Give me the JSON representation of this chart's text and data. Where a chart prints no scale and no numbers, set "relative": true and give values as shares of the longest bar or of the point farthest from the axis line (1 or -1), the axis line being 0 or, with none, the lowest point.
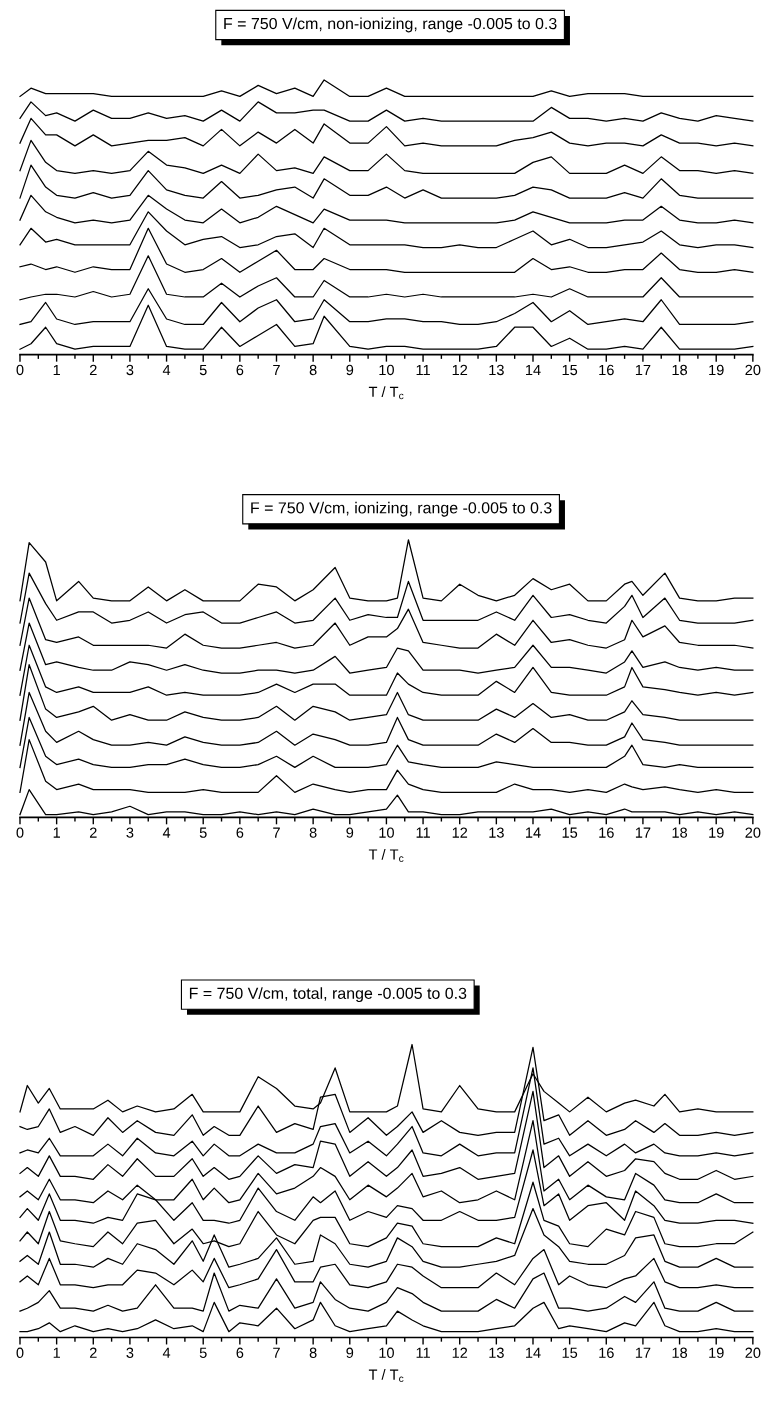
{
  "chart_data": [
    {
      "type": "line",
      "title": "F = 750 V/cm, non-ionizing, range -0.005 to 0.3",
      "xlabel": "T / T$_{c}$",
      "relative": true,
      "tick_labels": "x",
      "xlim": [
        0,
        20
      ],
      "xticks": [
        0,
        1,
        2,
        3,
        4,
        5,
        6,
        7,
        8,
        9,
        10,
        11,
        12,
        13,
        14,
        15,
        16,
        17,
        18,
        19,
        20
      ],
      "marker": "none",
      "line_style": "solid",
      "x": [
        0,
        0.3,
        0.7,
        1,
        1.5,
        2,
        2.5,
        3,
        3.5,
        4,
        4.5,
        5,
        5.5,
        6,
        6.5,
        7,
        7.5,
        8,
        8.3,
        9,
        9.5,
        10,
        10.5,
        11,
        11.5,
        12,
        12.5,
        13,
        13.5,
        14,
        14.5,
        15,
        15.5,
        16,
        16.5,
        17,
        17.5,
        18,
        18.5,
        19,
        19.5,
        20
      ],
      "series": [
        {
          "color": "#000000",
          "values": [
            0.02,
            0.04,
            0.1,
            0.04,
            0.02,
            0.03,
            0.03,
            0.03,
            0.18,
            0.03,
            0.02,
            0.02,
            0.1,
            0.03,
            0.07,
            0.11,
            0.03,
            0.04,
            0.14,
            0.03,
            0.02,
            0.03,
            0.03,
            0.02,
            0.02,
            0.02,
            0.02,
            0.03,
            0.1,
            0.1,
            0.03,
            0.06,
            0.02,
            0.02,
            0.03,
            0.02,
            0.1,
            0.02,
            0.02,
            0.02,
            0.02,
            0.03
          ]
        },
        {
          "color": "#000000",
          "values": [
            0.11,
            0.12,
            0.19,
            0.13,
            0.11,
            0.12,
            0.12,
            0.12,
            0.24,
            0.13,
            0.11,
            0.11,
            0.19,
            0.12,
            0.17,
            0.2,
            0.12,
            0.13,
            0.2,
            0.12,
            0.12,
            0.13,
            0.13,
            0.12,
            0.12,
            0.11,
            0.11,
            0.12,
            0.15,
            0.19,
            0.12,
            0.16,
            0.11,
            0.12,
            0.13,
            0.12,
            0.2,
            0.11,
            0.11,
            0.11,
            0.11,
            0.12
          ]
        },
        {
          "color": "#000000",
          "values": [
            0.2,
            0.21,
            0.22,
            0.22,
            0.21,
            0.23,
            0.21,
            0.22,
            0.36,
            0.22,
            0.21,
            0.21,
            0.26,
            0.21,
            0.25,
            0.28,
            0.21,
            0.21,
            0.27,
            0.21,
            0.21,
            0.22,
            0.21,
            0.22,
            0.21,
            0.21,
            0.21,
            0.21,
            0.21,
            0.22,
            0.21,
            0.24,
            0.21,
            0.21,
            0.21,
            0.21,
            0.28,
            0.21,
            0.21,
            0.21,
            0.21,
            0.21
          ]
        },
        {
          "color": "#000000",
          "values": [
            0.32,
            0.33,
            0.31,
            0.32,
            0.3,
            0.32,
            0.31,
            0.31,
            0.46,
            0.33,
            0.3,
            0.31,
            0.35,
            0.3,
            0.34,
            0.38,
            0.31,
            0.31,
            0.35,
            0.31,
            0.31,
            0.31,
            0.3,
            0.3,
            0.3,
            0.3,
            0.3,
            0.3,
            0.3,
            0.35,
            0.31,
            0.32,
            0.3,
            0.3,
            0.31,
            0.31,
            0.37,
            0.31,
            0.3,
            0.3,
            0.31,
            0.3
          ]
        },
        {
          "color": "#000000",
          "values": [
            0.4,
            0.46,
            0.41,
            0.42,
            0.4,
            0.4,
            0.4,
            0.4,
            0.52,
            0.45,
            0.4,
            0.42,
            0.43,
            0.39,
            0.4,
            0.43,
            0.44,
            0.39,
            0.46,
            0.4,
            0.4,
            0.4,
            0.4,
            0.39,
            0.39,
            0.4,
            0.39,
            0.39,
            0.42,
            0.45,
            0.4,
            0.42,
            0.39,
            0.39,
            0.4,
            0.41,
            0.45,
            0.4,
            0.39,
            0.4,
            0.4,
            0.39
          ]
        },
        {
          "color": "#000000",
          "values": [
            0.49,
            0.58,
            0.52,
            0.5,
            0.48,
            0.49,
            0.48,
            0.49,
            0.58,
            0.53,
            0.49,
            0.48,
            0.53,
            0.48,
            0.5,
            0.54,
            0.51,
            0.48,
            0.53,
            0.49,
            0.49,
            0.49,
            0.48,
            0.48,
            0.48,
            0.48,
            0.48,
            0.48,
            0.49,
            0.52,
            0.5,
            0.48,
            0.48,
            0.48,
            0.49,
            0.49,
            0.54,
            0.49,
            0.48,
            0.48,
            0.49,
            0.48
          ]
        },
        {
          "color": "#000000",
          "values": [
            0.57,
            0.69,
            0.61,
            0.58,
            0.57,
            0.59,
            0.57,
            0.58,
            0.67,
            0.6,
            0.58,
            0.57,
            0.63,
            0.57,
            0.58,
            0.6,
            0.61,
            0.57,
            0.64,
            0.58,
            0.58,
            0.61,
            0.57,
            0.6,
            0.57,
            0.57,
            0.57,
            0.57,
            0.58,
            0.61,
            0.6,
            0.57,
            0.57,
            0.57,
            0.59,
            0.57,
            0.64,
            0.58,
            0.57,
            0.57,
            0.57,
            0.57
          ]
        },
        {
          "color": "#000000",
          "values": [
            0.67,
            0.78,
            0.7,
            0.67,
            0.66,
            0.67,
            0.66,
            0.67,
            0.74,
            0.69,
            0.68,
            0.66,
            0.69,
            0.66,
            0.73,
            0.67,
            0.68,
            0.66,
            0.72,
            0.67,
            0.67,
            0.73,
            0.67,
            0.66,
            0.66,
            0.66,
            0.66,
            0.66,
            0.66,
            0.7,
            0.72,
            0.66,
            0.66,
            0.66,
            0.69,
            0.66,
            0.72,
            0.67,
            0.67,
            0.66,
            0.67,
            0.66
          ]
        },
        {
          "color": "#000000",
          "values": [
            0.77,
            0.86,
            0.8,
            0.8,
            0.76,
            0.8,
            0.76,
            0.77,
            0.78,
            0.78,
            0.79,
            0.76,
            0.82,
            0.76,
            0.81,
            0.77,
            0.82,
            0.77,
            0.84,
            0.77,
            0.77,
            0.83,
            0.76,
            0.77,
            0.76,
            0.76,
            0.76,
            0.76,
            0.78,
            0.79,
            0.81,
            0.77,
            0.76,
            0.77,
            0.77,
            0.76,
            0.8,
            0.77,
            0.77,
            0.76,
            0.77,
            0.76
          ]
        },
        {
          "color": "#000000",
          "values": [
            0.86,
            0.92,
            0.87,
            0.88,
            0.85,
            0.89,
            0.86,
            0.86,
            0.88,
            0.86,
            0.87,
            0.85,
            0.89,
            0.85,
            0.92,
            0.88,
            0.88,
            0.89,
            0.89,
            0.85,
            0.85,
            0.89,
            0.85,
            0.86,
            0.85,
            0.85,
            0.85,
            0.85,
            0.85,
            0.85,
            0.9,
            0.86,
            0.86,
            0.85,
            0.86,
            0.85,
            0.88,
            0.86,
            0.85,
            0.87,
            0.86,
            0.85
          ]
        },
        {
          "color": "#000000",
          "values": [
            0.94,
            0.97,
            0.95,
            0.95,
            0.95,
            0.95,
            0.94,
            0.94,
            0.94,
            0.94,
            0.94,
            0.94,
            0.96,
            0.94,
            0.98,
            0.95,
            0.97,
            0.94,
            1.0,
            0.94,
            0.94,
            0.97,
            0.94,
            0.94,
            0.94,
            0.94,
            0.94,
            0.94,
            0.94,
            0.94,
            0.96,
            0.94,
            0.95,
            0.95,
            0.95,
            0.94,
            0.94,
            0.94,
            0.94,
            0.94,
            0.94,
            0.94
          ]
        }
      ]
    },
    {
      "type": "line",
      "title": "F = 750 V/cm, ionizing, range -0.005 to 0.3",
      "xlabel": "T / T$_{c}$",
      "relative": true,
      "tick_labels": "x",
      "xlim": [
        0,
        20
      ],
      "xticks": [
        0,
        1,
        2,
        3,
        4,
        5,
        6,
        7,
        8,
        9,
        10,
        11,
        12,
        13,
        14,
        15,
        16,
        17,
        18,
        19,
        20
      ],
      "marker": "none",
      "line_style": "solid",
      "x": [
        0,
        0.25,
        0.7,
        1,
        1.6,
        2,
        2.5,
        3,
        3.5,
        4,
        4.5,
        5,
        5.5,
        6,
        6.5,
        7,
        7.5,
        8,
        8.6,
        9,
        9.5,
        10,
        10.3,
        10.6,
        11,
        11.5,
        12,
        12.5,
        13,
        13.5,
        14,
        14.5,
        15,
        15.5,
        16,
        16.5,
        16.7,
        17,
        17.6,
        18,
        18.5,
        19,
        19.5,
        20
      ],
      "series": [
        {
          "color": "#000000",
          "values": [
            0.01,
            0.1,
            0.01,
            0.01,
            0.02,
            0.01,
            0.02,
            0.04,
            0.01,
            0.02,
            0.02,
            0.01,
            0.01,
            0.02,
            0.01,
            0.02,
            0.01,
            0.03,
            0.01,
            0.01,
            0.02,
            0.03,
            0.08,
            0.02,
            0.02,
            0.01,
            0.01,
            0.02,
            0.02,
            0.02,
            0.02,
            0.03,
            0.01,
            0.02,
            0.01,
            0.03,
            0.02,
            0.02,
            0.02,
            0.01,
            0.02,
            0.01,
            0.02,
            0.01
          ]
        },
        {
          "color": "#000000",
          "values": [
            0.09,
            0.28,
            0.13,
            0.1,
            0.12,
            0.1,
            0.1,
            0.1,
            0.09,
            0.09,
            0.09,
            0.1,
            0.09,
            0.09,
            0.09,
            0.15,
            0.09,
            0.12,
            0.1,
            0.09,
            0.1,
            0.1,
            0.17,
            0.12,
            0.1,
            0.09,
            0.09,
            0.09,
            0.09,
            0.12,
            0.1,
            0.1,
            0.09,
            0.1,
            0.09,
            0.12,
            0.11,
            0.1,
            0.11,
            0.1,
            0.09,
            0.1,
            0.09,
            0.09
          ]
        },
        {
          "color": "#000000",
          "values": [
            0.18,
            0.36,
            0.22,
            0.19,
            0.21,
            0.19,
            0.18,
            0.18,
            0.19,
            0.19,
            0.21,
            0.19,
            0.18,
            0.18,
            0.19,
            0.22,
            0.18,
            0.22,
            0.18,
            0.18,
            0.18,
            0.19,
            0.26,
            0.2,
            0.19,
            0.18,
            0.18,
            0.18,
            0.2,
            0.19,
            0.18,
            0.18,
            0.18,
            0.18,
            0.18,
            0.22,
            0.26,
            0.19,
            0.18,
            0.19,
            0.18,
            0.18,
            0.18,
            0.18
          ]
        },
        {
          "color": "#000000",
          "values": [
            0.26,
            0.45,
            0.31,
            0.27,
            0.31,
            0.28,
            0.26,
            0.26,
            0.27,
            0.26,
            0.29,
            0.27,
            0.26,
            0.26,
            0.27,
            0.31,
            0.26,
            0.3,
            0.28,
            0.26,
            0.26,
            0.27,
            0.36,
            0.28,
            0.26,
            0.26,
            0.26,
            0.26,
            0.3,
            0.27,
            0.32,
            0.27,
            0.27,
            0.26,
            0.26,
            0.29,
            0.34,
            0.28,
            0.27,
            0.26,
            0.26,
            0.26,
            0.26,
            0.26
          ]
        },
        {
          "color": "#000000",
          "values": [
            0.35,
            0.55,
            0.39,
            0.36,
            0.38,
            0.4,
            0.35,
            0.37,
            0.35,
            0.35,
            0.38,
            0.36,
            0.35,
            0.35,
            0.36,
            0.4,
            0.35,
            0.4,
            0.38,
            0.35,
            0.36,
            0.37,
            0.45,
            0.37,
            0.35,
            0.35,
            0.35,
            0.35,
            0.39,
            0.36,
            0.41,
            0.36,
            0.37,
            0.35,
            0.35,
            0.38,
            0.42,
            0.37,
            0.36,
            0.35,
            0.35,
            0.35,
            0.35,
            0.35
          ]
        },
        {
          "color": "#000000",
          "values": [
            0.44,
            0.62,
            0.47,
            0.45,
            0.47,
            0.45,
            0.45,
            0.45,
            0.47,
            0.44,
            0.45,
            0.44,
            0.44,
            0.44,
            0.45,
            0.48,
            0.45,
            0.48,
            0.48,
            0.44,
            0.44,
            0.44,
            0.52,
            0.48,
            0.45,
            0.44,
            0.44,
            0.44,
            0.49,
            0.45,
            0.54,
            0.45,
            0.44,
            0.44,
            0.44,
            0.47,
            0.54,
            0.47,
            0.46,
            0.45,
            0.44,
            0.45,
            0.44,
            0.45
          ]
        },
        {
          "color": "#000000",
          "values": [
            0.53,
            0.7,
            0.55,
            0.56,
            0.54,
            0.53,
            0.53,
            0.56,
            0.55,
            0.53,
            0.55,
            0.53,
            0.52,
            0.52,
            0.53,
            0.53,
            0.52,
            0.53,
            0.58,
            0.52,
            0.53,
            0.54,
            0.61,
            0.6,
            0.53,
            0.53,
            0.53,
            0.52,
            0.53,
            0.54,
            0.62,
            0.54,
            0.54,
            0.53,
            0.52,
            0.56,
            0.6,
            0.54,
            0.56,
            0.54,
            0.53,
            0.54,
            0.53,
            0.53
          ]
        },
        {
          "color": "#000000",
          "values": [
            0.62,
            0.79,
            0.64,
            0.63,
            0.65,
            0.62,
            0.62,
            0.62,
            0.62,
            0.61,
            0.66,
            0.62,
            0.61,
            0.61,
            0.62,
            0.63,
            0.61,
            0.62,
            0.7,
            0.62,
            0.65,
            0.65,
            0.68,
            0.75,
            0.63,
            0.62,
            0.61,
            0.61,
            0.66,
            0.62,
            0.71,
            0.63,
            0.64,
            0.62,
            0.61,
            0.64,
            0.71,
            0.65,
            0.69,
            0.63,
            0.62,
            0.62,
            0.62,
            0.61
          ]
        },
        {
          "color": "#000000",
          "values": [
            0.7,
            0.88,
            0.77,
            0.71,
            0.74,
            0.74,
            0.7,
            0.71,
            0.74,
            0.7,
            0.73,
            0.74,
            0.7,
            0.7,
            0.72,
            0.74,
            0.7,
            0.71,
            0.79,
            0.71,
            0.73,
            0.72,
            0.72,
            0.85,
            0.71,
            0.71,
            0.71,
            0.71,
            0.74,
            0.71,
            0.8,
            0.72,
            0.73,
            0.71,
            0.7,
            0.76,
            0.8,
            0.72,
            0.79,
            0.71,
            0.7,
            0.7,
            0.7,
            0.71
          ]
        },
        {
          "color": "#000000",
          "values": [
            0.78,
            0.99,
            0.92,
            0.78,
            0.85,
            0.79,
            0.78,
            0.78,
            0.83,
            0.78,
            0.82,
            0.78,
            0.78,
            0.78,
            0.84,
            0.83,
            0.78,
            0.82,
            0.9,
            0.79,
            0.78,
            0.78,
            0.79,
            1.0,
            0.79,
            0.78,
            0.84,
            0.8,
            0.78,
            0.8,
            0.86,
            0.82,
            0.84,
            0.78,
            0.78,
            0.84,
            0.85,
            0.8,
            0.88,
            0.79,
            0.78,
            0.78,
            0.79,
            0.79
          ]
        }
      ]
    },
    {
      "type": "line",
      "title": "F = 750 V/cm, total, range -0.005 to 0.3",
      "xlabel": "T / T$_{c}$",
      "relative": true,
      "tick_labels": "x",
      "xlim": [
        0,
        20
      ],
      "xticks": [
        0,
        1,
        2,
        3,
        4,
        5,
        6,
        7,
        8,
        9,
        10,
        11,
        12,
        13,
        14,
        15,
        16,
        17,
        18,
        19,
        20
      ],
      "marker": "none",
      "line_style": "solid",
      "x": [
        0,
        0.2,
        0.5,
        0.8,
        1.1,
        1.5,
        2,
        2.4,
        2.8,
        3.2,
        3.7,
        4.2,
        4.7,
        5,
        5.3,
        5.7,
        6,
        6.5,
        7,
        7.5,
        8,
        8.2,
        8.6,
        9,
        9.5,
        10,
        10.3,
        10.7,
        11,
        11.5,
        12,
        12.5,
        13,
        13.5,
        14,
        14.3,
        14.7,
        15,
        15.5,
        16,
        16.5,
        16.8,
        17.3,
        17.6,
        18,
        18.5,
        19,
        19.5,
        20
      ],
      "series": [
        {
          "color": "#000000",
          "values": [
            0.02,
            0.02,
            0.03,
            0.05,
            0.02,
            0.04,
            0.02,
            0.03,
            0.02,
            0.03,
            0.06,
            0.03,
            0.04,
            0.02,
            0.12,
            0.02,
            0.05,
            0.04,
            0.1,
            0.03,
            0.06,
            0.12,
            0.04,
            0.02,
            0.03,
            0.04,
            0.09,
            0.06,
            0.04,
            0.02,
            0.02,
            0.02,
            0.03,
            0.04,
            0.1,
            0.12,
            0.03,
            0.04,
            0.03,
            0.02,
            0.05,
            0.04,
            0.12,
            0.04,
            0.02,
            0.02,
            0.03,
            0.02,
            0.02
          ]
        },
        {
          "color": "#000000",
          "values": [
            0.09,
            0.1,
            0.12,
            0.16,
            0.1,
            0.1,
            0.09,
            0.11,
            0.09,
            0.1,
            0.18,
            0.1,
            0.1,
            0.09,
            0.22,
            0.09,
            0.11,
            0.1,
            0.2,
            0.1,
            0.12,
            0.19,
            0.13,
            0.1,
            0.09,
            0.12,
            0.17,
            0.15,
            0.12,
            0.09,
            0.09,
            0.09,
            0.13,
            0.1,
            0.2,
            0.22,
            0.1,
            0.1,
            0.09,
            0.1,
            0.14,
            0.12,
            0.19,
            0.1,
            0.09,
            0.09,
            0.12,
            0.09,
            0.09
          ]
        },
        {
          "color": "#000000",
          "values": [
            0.19,
            0.21,
            0.18,
            0.27,
            0.18,
            0.18,
            0.17,
            0.18,
            0.18,
            0.23,
            0.22,
            0.18,
            0.23,
            0.19,
            0.27,
            0.17,
            0.18,
            0.2,
            0.3,
            0.19,
            0.19,
            0.24,
            0.25,
            0.18,
            0.17,
            0.19,
            0.25,
            0.24,
            0.21,
            0.17,
            0.17,
            0.17,
            0.22,
            0.18,
            0.27,
            0.3,
            0.18,
            0.21,
            0.18,
            0.17,
            0.2,
            0.21,
            0.27,
            0.19,
            0.17,
            0.17,
            0.18,
            0.17,
            0.17
          ]
        },
        {
          "color": "#000000",
          "values": [
            0.26,
            0.28,
            0.25,
            0.36,
            0.25,
            0.25,
            0.24,
            0.27,
            0.25,
            0.32,
            0.3,
            0.25,
            0.33,
            0.26,
            0.35,
            0.24,
            0.25,
            0.27,
            0.34,
            0.25,
            0.26,
            0.35,
            0.32,
            0.25,
            0.24,
            0.26,
            0.34,
            0.31,
            0.26,
            0.24,
            0.24,
            0.25,
            0.26,
            0.28,
            0.44,
            0.35,
            0.31,
            0.26,
            0.25,
            0.25,
            0.28,
            0.34,
            0.35,
            0.26,
            0.24,
            0.24,
            0.27,
            0.24,
            0.24
          ]
        },
        {
          "color": "#000000",
          "values": [
            0.33,
            0.36,
            0.32,
            0.43,
            0.33,
            0.32,
            0.31,
            0.36,
            0.32,
            0.39,
            0.4,
            0.32,
            0.37,
            0.32,
            0.33,
            0.31,
            0.32,
            0.43,
            0.35,
            0.32,
            0.4,
            0.41,
            0.41,
            0.32,
            0.31,
            0.34,
            0.39,
            0.38,
            0.32,
            0.31,
            0.31,
            0.31,
            0.34,
            0.32,
            0.53,
            0.4,
            0.38,
            0.32,
            0.31,
            0.37,
            0.35,
            0.43,
            0.41,
            0.32,
            0.31,
            0.31,
            0.32,
            0.32,
            0.36
          ]
        },
        {
          "color": "#000000",
          "values": [
            0.41,
            0.44,
            0.4,
            0.49,
            0.4,
            0.4,
            0.39,
            0.41,
            0.4,
            0.49,
            0.47,
            0.4,
            0.46,
            0.4,
            0.4,
            0.39,
            0.4,
            0.51,
            0.43,
            0.4,
            0.48,
            0.46,
            0.5,
            0.4,
            0.43,
            0.41,
            0.45,
            0.44,
            0.4,
            0.4,
            0.43,
            0.4,
            0.4,
            0.41,
            0.64,
            0.45,
            0.49,
            0.4,
            0.45,
            0.46,
            0.4,
            0.5,
            0.45,
            0.4,
            0.39,
            0.39,
            0.4,
            0.4,
            0.39
          ]
        },
        {
          "color": "#000000",
          "values": [
            0.48,
            0.5,
            0.47,
            0.54,
            0.47,
            0.47,
            0.46,
            0.5,
            0.47,
            0.52,
            0.47,
            0.47,
            0.54,
            0.47,
            0.51,
            0.46,
            0.47,
            0.56,
            0.49,
            0.51,
            0.55,
            0.58,
            0.55,
            0.47,
            0.52,
            0.48,
            0.51,
            0.56,
            0.48,
            0.5,
            0.46,
            0.47,
            0.5,
            0.47,
            0.74,
            0.5,
            0.54,
            0.47,
            0.52,
            0.48,
            0.47,
            0.56,
            0.52,
            0.47,
            0.46,
            0.46,
            0.49,
            0.46,
            0.46
          ]
        },
        {
          "color": "#000000",
          "values": [
            0.56,
            0.58,
            0.55,
            0.62,
            0.55,
            0.55,
            0.54,
            0.59,
            0.55,
            0.61,
            0.55,
            0.55,
            0.61,
            0.55,
            0.58,
            0.54,
            0.55,
            0.62,
            0.56,
            0.59,
            0.58,
            0.67,
            0.66,
            0.55,
            0.6,
            0.55,
            0.58,
            0.64,
            0.55,
            0.56,
            0.58,
            0.54,
            0.55,
            0.56,
            0.84,
            0.58,
            0.62,
            0.55,
            0.6,
            0.55,
            0.57,
            0.61,
            0.6,
            0.56,
            0.54,
            0.54,
            0.57,
            0.54,
            0.55
          ]
        },
        {
          "color": "#000000",
          "values": [
            0.63,
            0.64,
            0.63,
            0.68,
            0.62,
            0.62,
            0.62,
            0.66,
            0.62,
            0.68,
            0.63,
            0.62,
            0.67,
            0.62,
            0.66,
            0.62,
            0.62,
            0.66,
            0.63,
            0.63,
            0.66,
            0.72,
            0.73,
            0.63,
            0.67,
            0.62,
            0.66,
            0.72,
            0.63,
            0.62,
            0.66,
            0.62,
            0.63,
            0.63,
            0.92,
            0.66,
            0.68,
            0.62,
            0.66,
            0.62,
            0.66,
            0.63,
            0.66,
            0.63,
            0.62,
            0.62,
            0.63,
            0.62,
            0.63
          ]
        },
        {
          "color": "#000000",
          "values": [
            0.72,
            0.71,
            0.72,
            0.78,
            0.7,
            0.72,
            0.69,
            0.75,
            0.7,
            0.74,
            0.7,
            0.69,
            0.76,
            0.69,
            0.72,
            0.69,
            0.69,
            0.79,
            0.7,
            0.73,
            0.71,
            0.82,
            0.83,
            0.7,
            0.75,
            0.69,
            0.72,
            0.77,
            0.7,
            0.74,
            0.7,
            0.69,
            0.7,
            0.7,
            0.99,
            0.74,
            0.76,
            0.69,
            0.74,
            0.69,
            0.71,
            0.74,
            0.7,
            0.73,
            0.69,
            0.69,
            0.7,
            0.69,
            0.7
          ]
        },
        {
          "color": "#000000",
          "values": [
            0.77,
            0.86,
            0.8,
            0.85,
            0.78,
            0.78,
            0.78,
            0.81,
            0.77,
            0.79,
            0.77,
            0.78,
            0.83,
            0.77,
            0.77,
            0.77,
            0.77,
            0.89,
            0.85,
            0.79,
            0.78,
            0.8,
            0.92,
            0.77,
            0.77,
            0.77,
            0.79,
            1.0,
            0.78,
            0.77,
            0.86,
            0.78,
            0.77,
            0.77,
            0.9,
            0.84,
            0.8,
            0.77,
            0.82,
            0.77,
            0.8,
            0.81,
            0.79,
            0.83,
            0.77,
            0.78,
            0.77,
            0.77,
            0.77
          ]
        }
      ]
    }
  ]
}
